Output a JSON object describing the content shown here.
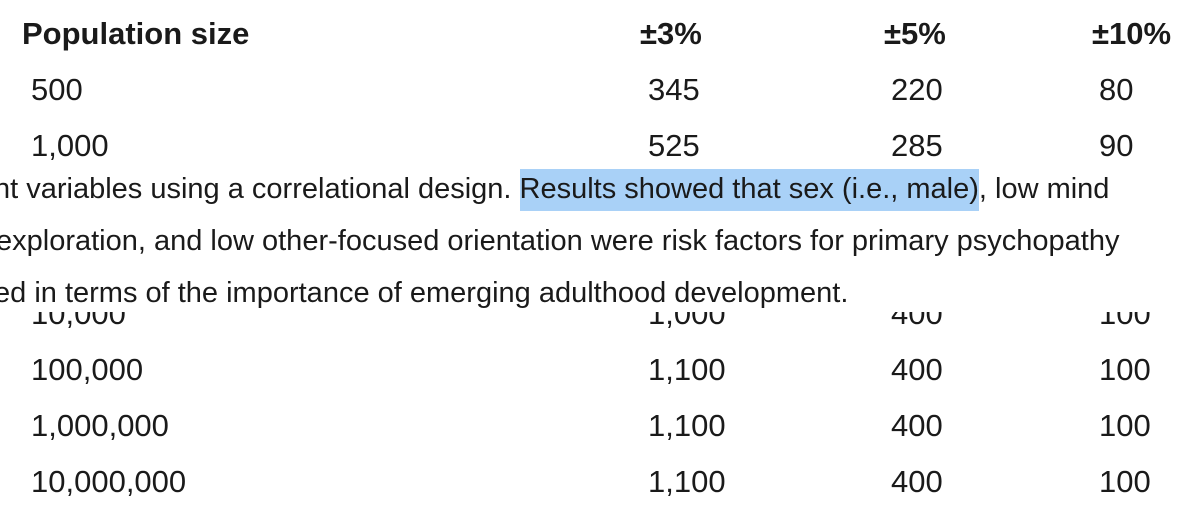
{
  "table": {
    "headers": [
      "Population size",
      "±3%",
      "±5%",
      "±10%"
    ],
    "rows": [
      [
        "500",
        "345",
        "220",
        "80"
      ],
      [
        "1,000",
        "525",
        "285",
        "90"
      ],
      [
        "10,000",
        "1,000",
        "400",
        "100"
      ],
      [
        "100,000",
        "1,100",
        "400",
        "100"
      ],
      [
        "1,000,000",
        "1,100",
        "400",
        "100"
      ],
      [
        "10,000,000",
        "1,100",
        "400",
        "100"
      ]
    ]
  },
  "overlay_text": {
    "line1_before": "nt variables using a correlational design. ",
    "line1_highlight": "Results showed that sex (i.e., male)",
    "line1_after": ", low mind",
    "line2": " exploration, and low other-focused orientation were risk factors for primary psychopathy",
    "line3": "ed in terms of the importance of emerging adulthood development."
  },
  "colors": {
    "highlight": "#a9d1f7",
    "text": "#1a1a1a",
    "background": "#ffffff"
  }
}
